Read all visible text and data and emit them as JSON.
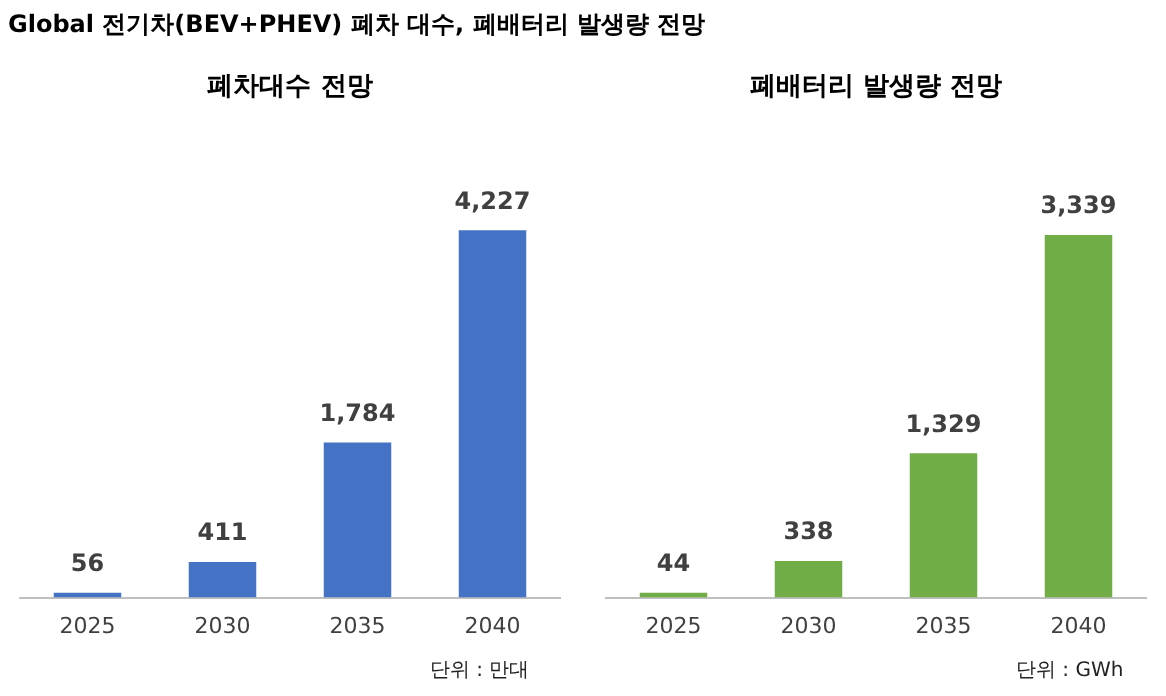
{
  "chart_data": [
    {
      "type": "bar",
      "title": "폐차대수 전망",
      "categories": [
        "2025",
        "2030",
        "2035",
        "2040"
      ],
      "values": [
        56,
        411,
        1784,
        4227
      ],
      "value_labels": [
        "56",
        "411",
        "1,784",
        "4,227"
      ],
      "color": "#4472c4",
      "tick_labels": "x",
      "grid": false,
      "legend": false,
      "annotations": [
        "Global 전기차(BEV+PHEV) 폐차 대수, 폐배터리 발생량 전망",
        "단위 : 만대"
      ]
    },
    {
      "type": "bar",
      "title": "폐배터리 발생량 전망",
      "categories": [
        "2025",
        "2030",
        "2035",
        "2040"
      ],
      "values": [
        44,
        338,
        1329,
        3339
      ],
      "value_labels": [
        "44",
        "338",
        "1,329",
        "3,339"
      ],
      "color": "#70ad47",
      "tick_labels": "x",
      "grid": false,
      "legend": false,
      "annotations": [
        "단위 : GWh"
      ]
    }
  ]
}
